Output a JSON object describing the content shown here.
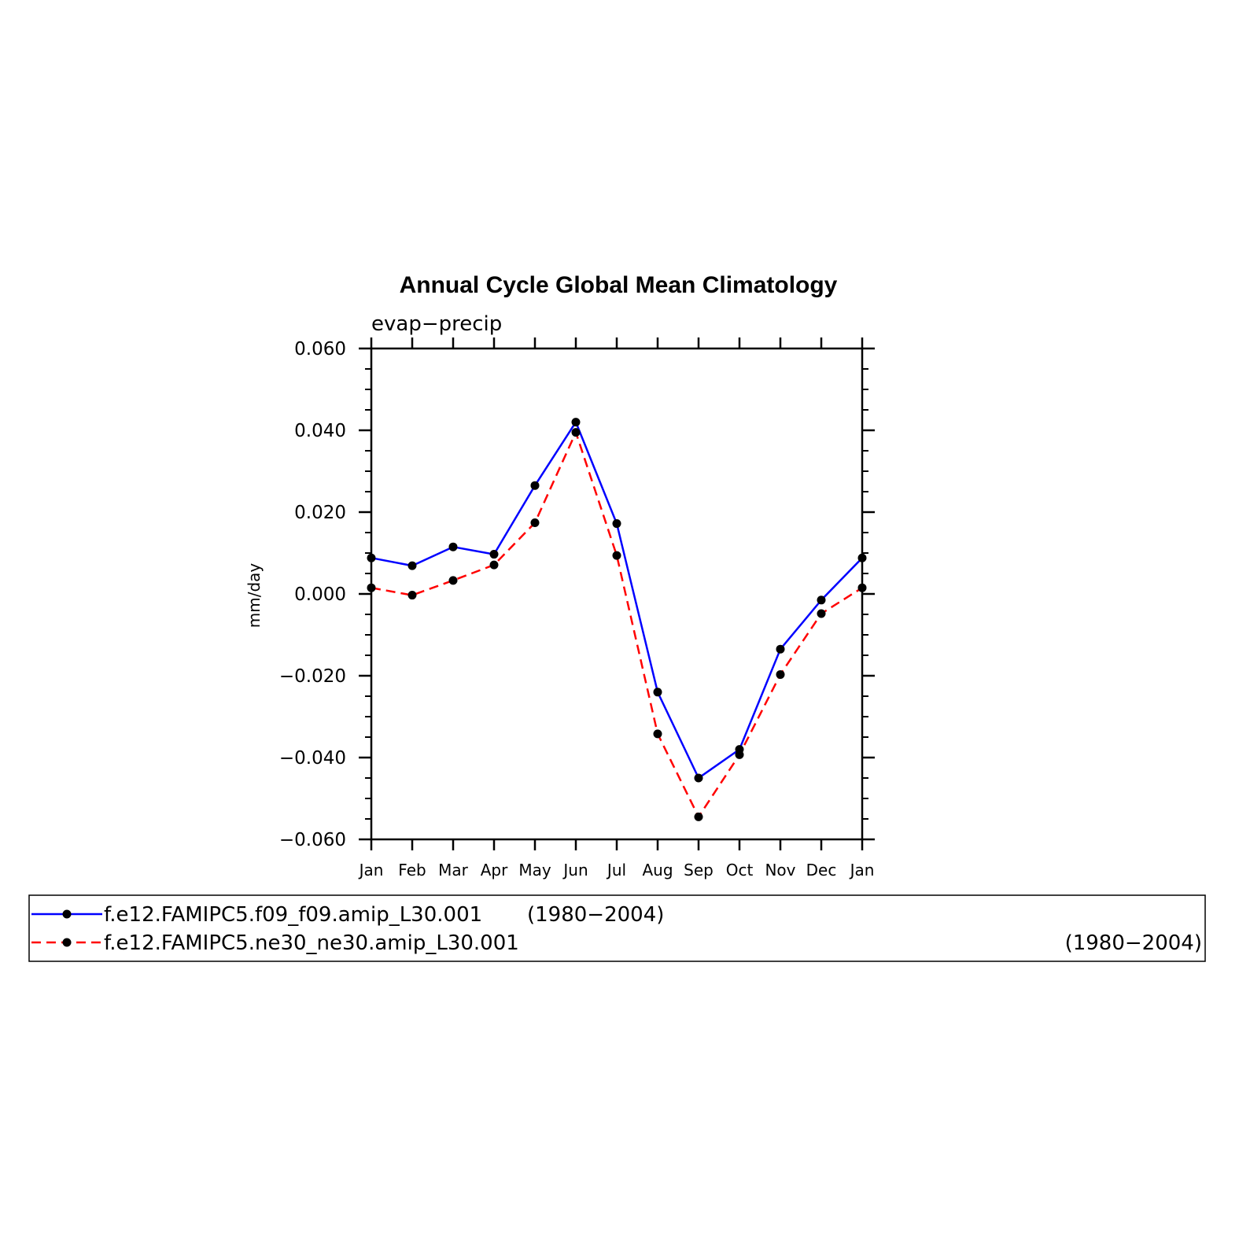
{
  "chart_data": {
    "type": "line",
    "title": "Annual Cycle Global Mean Climatology",
    "subtitle": "evap−precip",
    "xlabel": "",
    "ylabel": "mm/day",
    "categories": [
      "Jan",
      "Feb",
      "Mar",
      "Apr",
      "May",
      "Jun",
      "Jul",
      "Aug",
      "Sep",
      "Oct",
      "Nov",
      "Dec",
      "Jan"
    ],
    "ylim": [
      -0.06,
      0.06
    ],
    "yticks": [
      "0.060",
      "0.040",
      "0.020",
      "0.000",
      "−0.020",
      "−0.040",
      "−0.060"
    ],
    "ytick_values": [
      0.06,
      0.04,
      0.02,
      0.0,
      -0.02,
      -0.04,
      -0.06
    ],
    "series": [
      {
        "name": "f.e12.FAMIPC5.f09_f09.amip_L30.001",
        "period": "(1980−2004)",
        "color": "#0000ff",
        "dash": "solid",
        "values": [
          0.0088,
          0.0069,
          0.0115,
          0.0097,
          0.0265,
          0.042,
          0.0172,
          -0.024,
          -0.045,
          -0.038,
          -0.0135,
          -0.0015,
          0.0088
        ]
      },
      {
        "name": "f.e12.FAMIPC5.ne30_ne30.amip_L30.001",
        "period": "(1980−2004)",
        "color": "#ff0000",
        "dash": "dashed",
        "values": [
          0.0015,
          -0.0003,
          0.0033,
          0.0071,
          0.0174,
          0.0395,
          0.0094,
          -0.0342,
          -0.0545,
          -0.0393,
          -0.0197,
          -0.0048,
          0.0015
        ]
      }
    ],
    "legend": "bottom",
    "grid": false
  }
}
